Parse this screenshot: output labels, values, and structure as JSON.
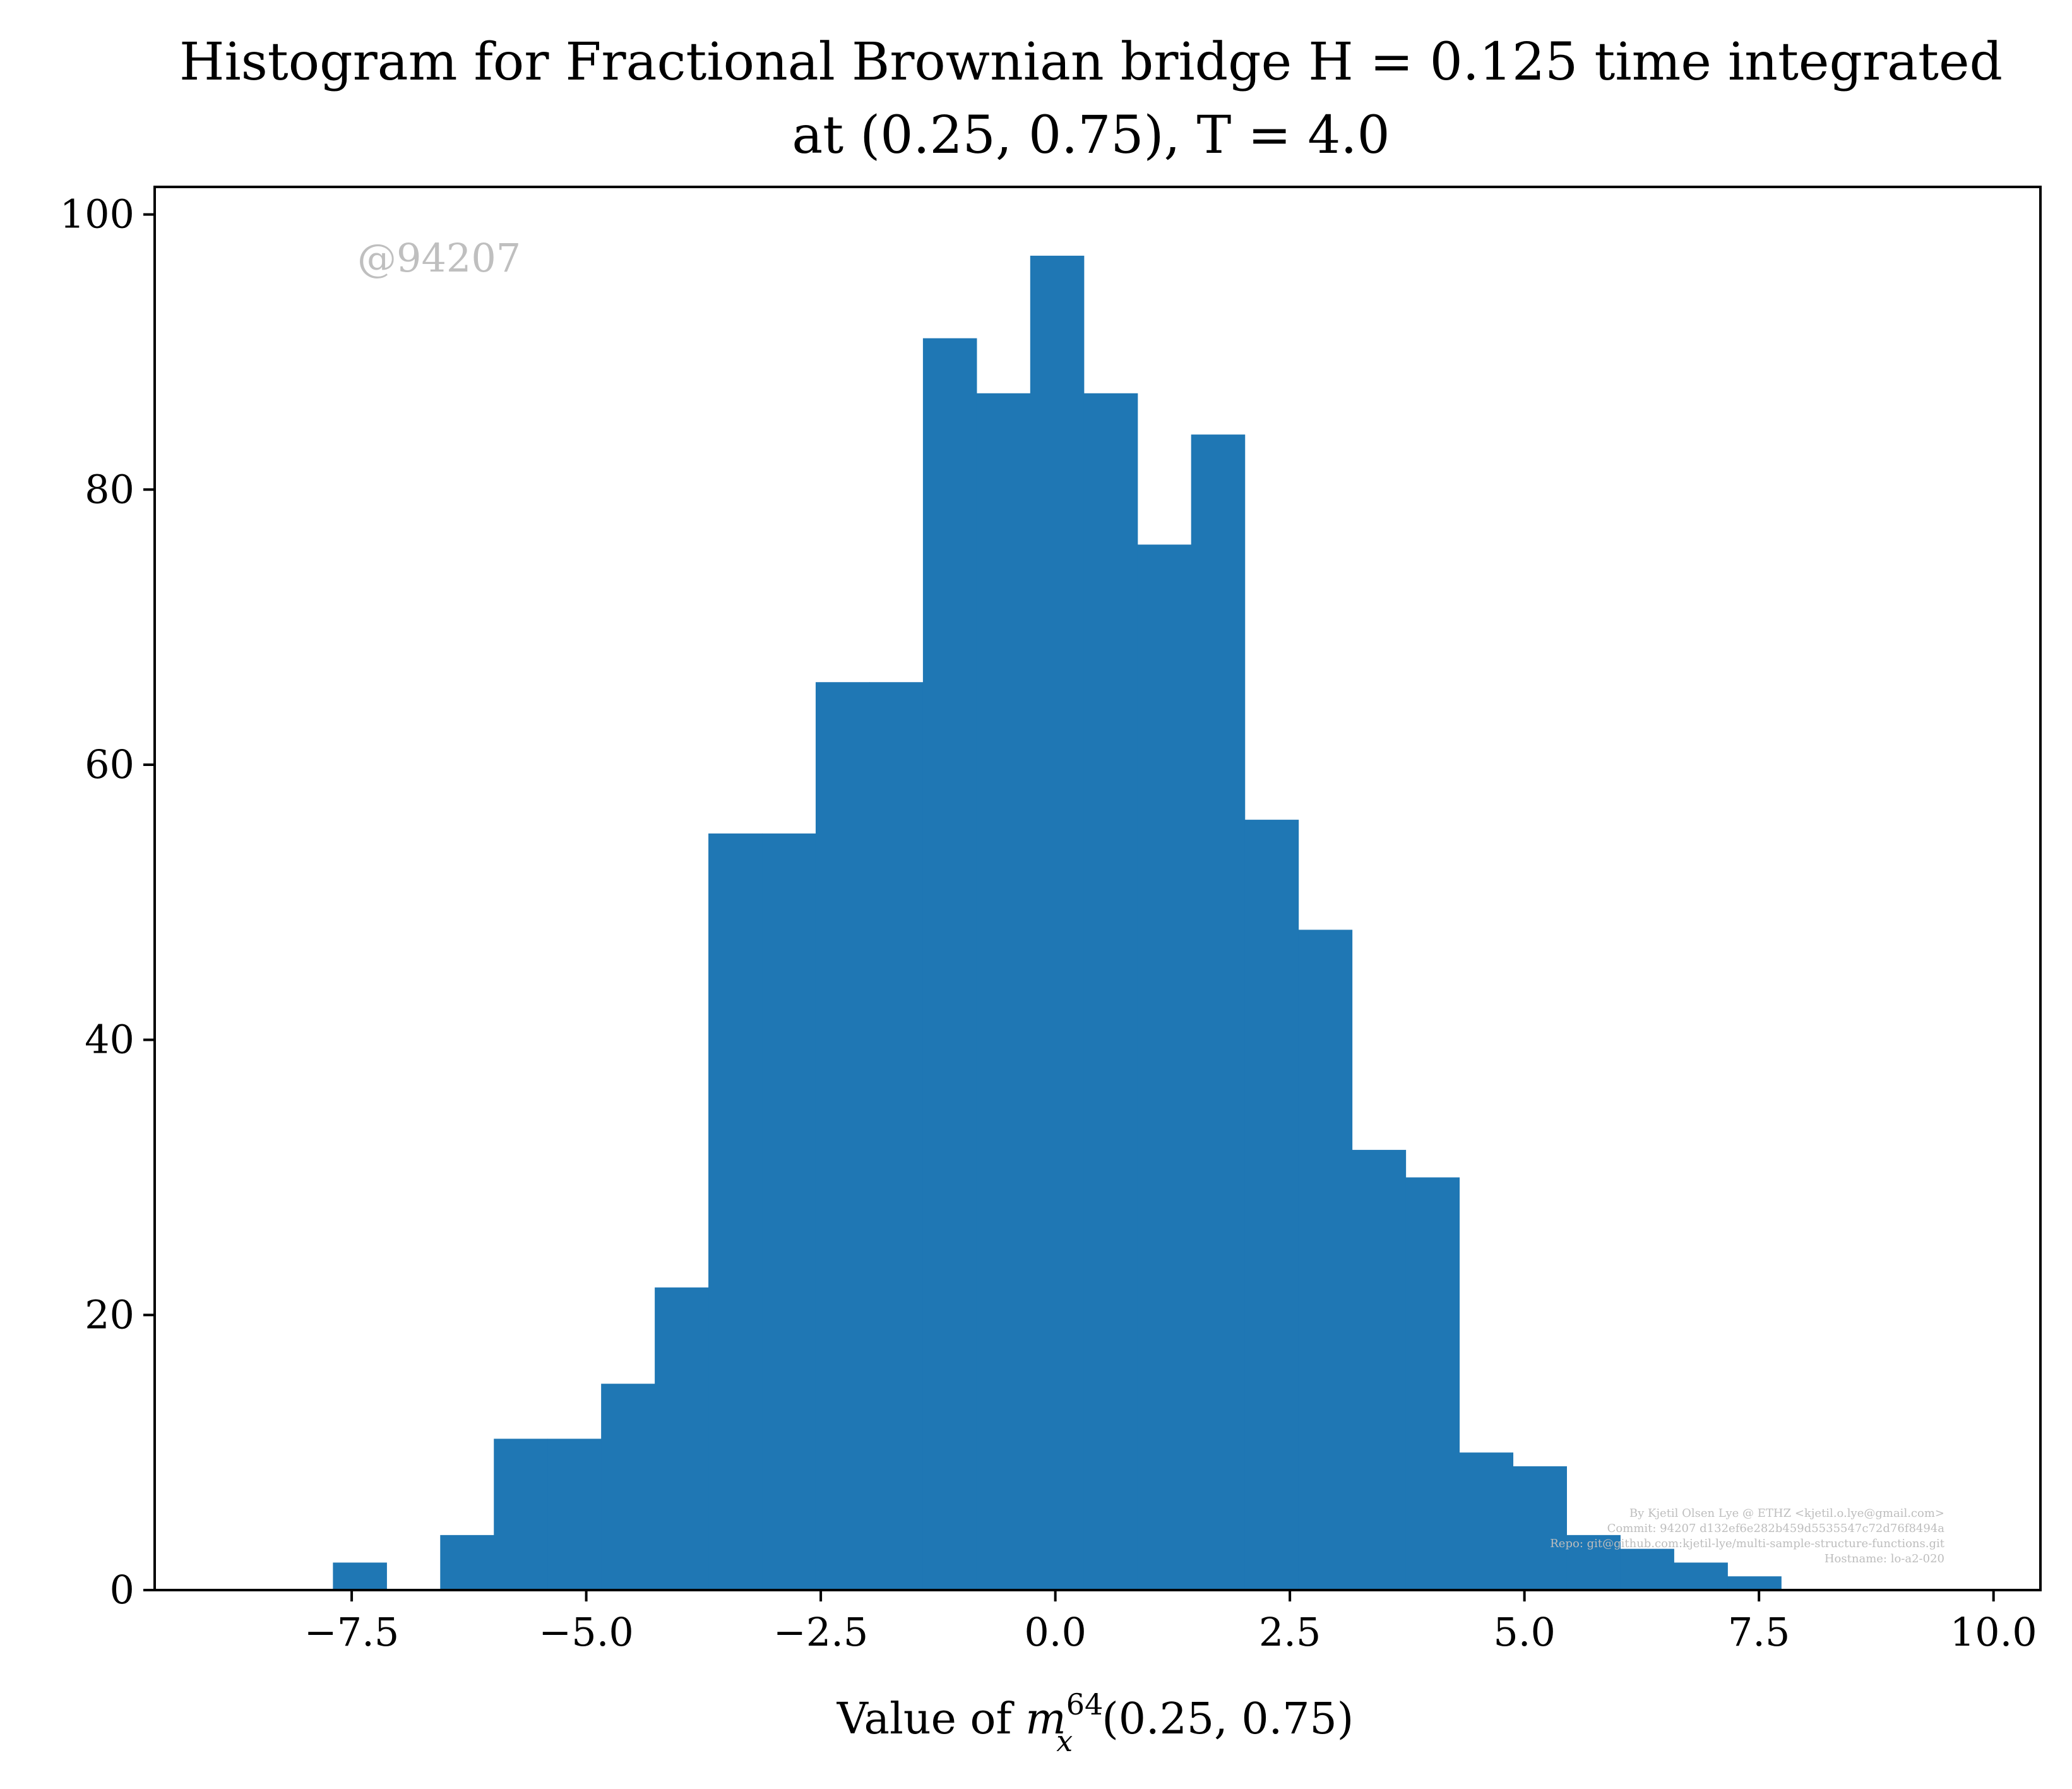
{
  "chart_data": {
    "type": "bar",
    "histogram": true,
    "title_lines": [
      "Histogram for Fractional Brownian bridge H = 0.125 time integrated",
      "at (0.25, 0.75), T = 4.0"
    ],
    "xlabel": {
      "prefix": "Value of ",
      "var": "m",
      "sup": "64",
      "sub": "x",
      "suffix": "(0.25, 0.75)"
    },
    "ylabel": "",
    "xlim": [
      -9.6,
      10.5
    ],
    "ylim": [
      0,
      102
    ],
    "xticks": [
      -7.5,
      -5.0,
      -2.5,
      0.0,
      2.5,
      5.0,
      7.5,
      10.0
    ],
    "xtick_labels": [
      "−7.5",
      "−5.0",
      "−2.5",
      "0.0",
      "2.5",
      "5.0",
      "7.5",
      "10.0"
    ],
    "yticks": [
      0,
      20,
      40,
      60,
      80,
      100
    ],
    "ytick_labels": [
      "0",
      "20",
      "40",
      "60",
      "80",
      "100"
    ],
    "bins_start": -7.7,
    "bin_width": 0.5717,
    "counts": [
      2,
      0,
      4,
      11,
      11,
      15,
      22,
      55,
      55,
      66,
      66,
      91,
      87,
      97,
      87,
      76,
      84,
      56,
      48,
      32,
      30,
      10,
      9,
      4,
      3,
      2,
      1
    ],
    "bar_color": "#1f77b4",
    "grid": false
  },
  "watermark": "@94207",
  "footer_lines": [
    "By Kjetil Olsen Lye @ ETHZ <kjetil.o.lye@gmail.com>",
    "Commit: 94207 d132ef6e282b459d5535547c72d76f8494a",
    "Repo: git@github.com:kjetil-lye/multi-sample-structure-functions.git",
    "Hostname: lo-a2-020"
  ]
}
